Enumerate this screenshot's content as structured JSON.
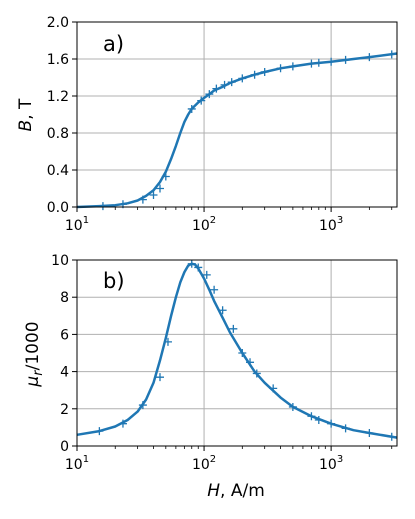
{
  "colors": {
    "series": "#1f77b4",
    "grid": "#b0b0b0",
    "axis": "#000000"
  },
  "chart_data": [
    {
      "type": "line",
      "panel_label": "a)",
      "xlabel": "",
      "ylabel_symbol": "B",
      "ylabel_unit": ", T",
      "xscale": "log",
      "xlim": [
        10,
        3300
      ],
      "ylim": [
        0,
        2.0
      ],
      "grid": true,
      "x_ticks": [
        {
          "value": 10,
          "base": "10",
          "exp": "1"
        },
        {
          "value": 100,
          "base": "10",
          "exp": "2"
        },
        {
          "value": 1000,
          "base": "10",
          "exp": "3"
        }
      ],
      "y_ticks": [
        {
          "value": 0,
          "label": "0.0"
        },
        {
          "value": 0.4,
          "label": "0.4"
        },
        {
          "value": 0.8,
          "label": "0.8"
        },
        {
          "value": 1.2,
          "label": "1.2"
        },
        {
          "value": 1.6,
          "label": "1.6"
        },
        {
          "value": 2.0,
          "label": "2.0"
        }
      ],
      "curve": {
        "x": [
          10,
          15,
          20,
          25,
          30,
          35,
          40,
          45,
          50,
          55,
          60,
          65,
          70,
          75,
          80,
          90,
          100,
          110,
          120,
          140,
          160,
          200,
          250,
          300,
          400,
          500,
          700,
          1000,
          1500,
          2000,
          3300
        ],
        "y": [
          0.0,
          0.01,
          0.02,
          0.04,
          0.07,
          0.12,
          0.18,
          0.27,
          0.38,
          0.52,
          0.66,
          0.8,
          0.92,
          1.0,
          1.06,
          1.13,
          1.18,
          1.22,
          1.26,
          1.3,
          1.34,
          1.39,
          1.43,
          1.46,
          1.5,
          1.52,
          1.55,
          1.57,
          1.6,
          1.62,
          1.66
        ]
      },
      "markers": {
        "x": [
          16,
          23,
          33,
          40,
          45,
          50,
          80,
          95,
          110,
          125,
          145,
          165,
          200,
          250,
          300,
          400,
          500,
          700,
          800,
          1000,
          1300,
          2000,
          3000
        ],
        "y": [
          0.01,
          0.03,
          0.08,
          0.13,
          0.2,
          0.33,
          1.06,
          1.15,
          1.22,
          1.28,
          1.32,
          1.35,
          1.39,
          1.43,
          1.46,
          1.5,
          1.52,
          1.55,
          1.56,
          1.57,
          1.59,
          1.62,
          1.65
        ]
      }
    },
    {
      "type": "line",
      "panel_label": "b)",
      "xlabel_symbol": "H",
      "xlabel_unit": ", A/m",
      "ylabel_symbol": "μ",
      "ylabel_sub": "r",
      "ylabel_unit": "/1000",
      "xscale": "log",
      "xlim": [
        10,
        3300
      ],
      "ylim": [
        0,
        10
      ],
      "grid": true,
      "x_ticks": [
        {
          "value": 10,
          "base": "10",
          "exp": "1"
        },
        {
          "value": 100,
          "base": "10",
          "exp": "2"
        },
        {
          "value": 1000,
          "base": "10",
          "exp": "3"
        }
      ],
      "y_ticks": [
        {
          "value": 0,
          "label": "0"
        },
        {
          "value": 2,
          "label": "2"
        },
        {
          "value": 4,
          "label": "4"
        },
        {
          "value": 6,
          "label": "6"
        },
        {
          "value": 8,
          "label": "8"
        },
        {
          "value": 10,
          "label": "10"
        }
      ],
      "curve": {
        "x": [
          10,
          15,
          20,
          25,
          30,
          35,
          40,
          45,
          50,
          55,
          60,
          65,
          70,
          75,
          80,
          85,
          90,
          100,
          110,
          120,
          140,
          160,
          200,
          250,
          300,
          400,
          500,
          700,
          1000,
          1500,
          2000,
          3300
        ],
        "y": [
          0.6,
          0.8,
          1.05,
          1.4,
          1.85,
          2.5,
          3.4,
          4.6,
          5.8,
          7.0,
          8.0,
          8.8,
          9.35,
          9.7,
          9.8,
          9.75,
          9.55,
          9.0,
          8.4,
          7.8,
          6.9,
          6.1,
          5.0,
          4.0,
          3.4,
          2.6,
          2.1,
          1.6,
          1.2,
          0.85,
          0.7,
          0.45
        ]
      },
      "markers": {
        "x": [
          15,
          23,
          33,
          45,
          52,
          80,
          90,
          105,
          120,
          140,
          170,
          200,
          230,
          260,
          350,
          500,
          700,
          800,
          1000,
          1300,
          2000,
          3000
        ],
        "y": [
          0.8,
          1.2,
          2.2,
          3.7,
          5.6,
          9.8,
          9.6,
          9.2,
          8.4,
          7.3,
          6.3,
          5.0,
          4.5,
          3.9,
          3.1,
          2.1,
          1.6,
          1.4,
          1.2,
          0.95,
          0.7,
          0.5
        ]
      }
    }
  ]
}
